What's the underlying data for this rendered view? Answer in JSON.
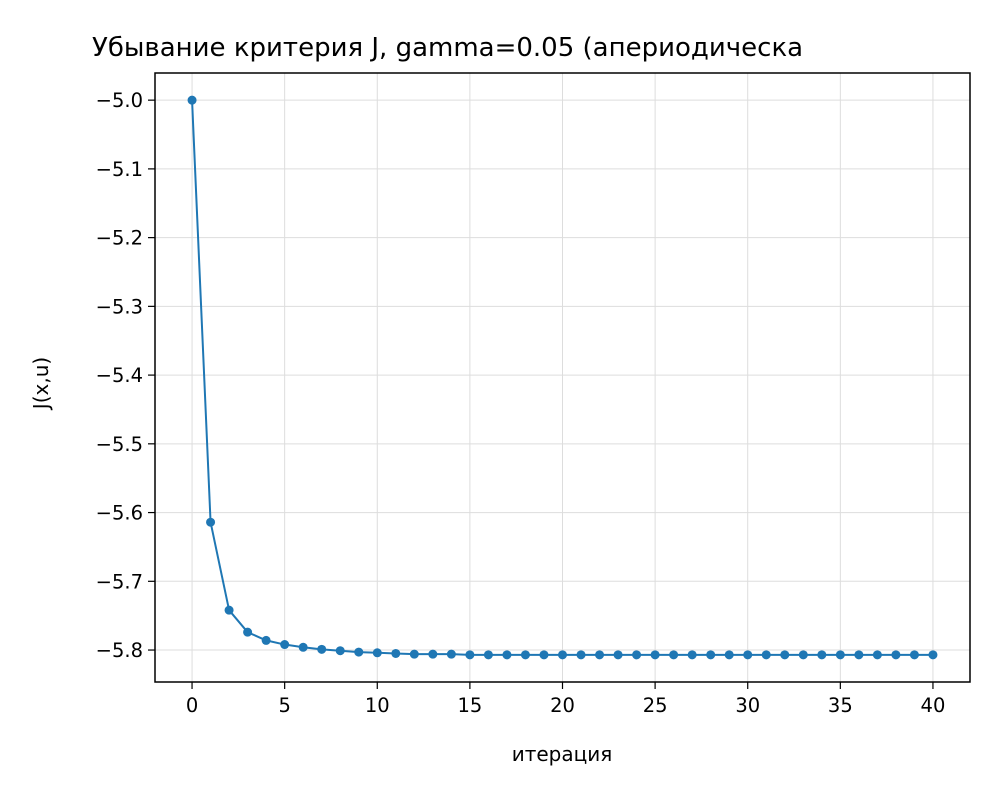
{
  "chart_data": {
    "type": "line",
    "title": "Убывание критерия J, gamma=0.05 (апериодическа",
    "xlabel": "итерация",
    "ylabel": "J(x,u)",
    "xlim": [
      -2,
      42
    ],
    "ylim": [
      -5.8465,
      -4.9605
    ],
    "x_ticks": [
      0,
      5,
      10,
      15,
      20,
      25,
      30,
      35,
      40
    ],
    "x_tick_labels": [
      "0",
      "5",
      "10",
      "15",
      "20",
      "25",
      "30",
      "35",
      "40"
    ],
    "y_ticks": [
      -5.0,
      -5.1,
      -5.2,
      -5.3,
      -5.4,
      -5.5,
      -5.6,
      -5.7,
      -5.8
    ],
    "y_tick_labels": [
      "−5.0",
      "−5.1",
      "−5.2",
      "−5.3",
      "−5.4",
      "−5.5",
      "−5.6",
      "−5.7",
      "−5.8"
    ],
    "grid": true,
    "colors": {
      "series": "#1f77b4",
      "grid": "#dddddd",
      "axes": "#000000"
    },
    "series": [
      {
        "x": [
          0,
          1,
          2,
          3,
          4,
          5,
          6,
          7,
          8,
          9,
          10,
          11,
          12,
          13,
          14,
          15,
          16,
          17,
          18,
          19,
          20,
          21,
          22,
          23,
          24,
          25,
          26,
          27,
          28,
          29,
          30,
          31,
          32,
          33,
          34,
          35,
          36,
          37,
          38,
          39,
          40
        ],
        "values": [
          -5.0,
          -5.614,
          -5.742,
          -5.774,
          -5.786,
          -5.792,
          -5.796,
          -5.799,
          -5.801,
          -5.803,
          -5.804,
          -5.805,
          -5.806,
          -5.806,
          -5.806,
          -5.807,
          -5.807,
          -5.807,
          -5.807,
          -5.807,
          -5.807,
          -5.807,
          -5.807,
          -5.807,
          -5.807,
          -5.807,
          -5.807,
          -5.807,
          -5.807,
          -5.807,
          -5.807,
          -5.807,
          -5.807,
          -5.807,
          -5.807,
          -5.807,
          -5.807,
          -5.807,
          -5.807,
          -5.807,
          -5.807
        ]
      }
    ]
  }
}
